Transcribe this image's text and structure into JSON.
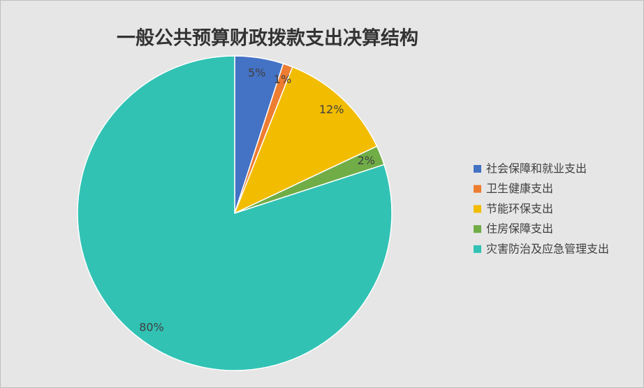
{
  "chart_data": {
    "type": "pie",
    "title": "一般公共预算财政拨款支出决算结构",
    "categories": [
      "社会保障和就业支出",
      "卫生健康支出",
      "节能环保支出",
      "住房保障支出",
      "灾害防治及应急管理支出"
    ],
    "values": [
      5,
      1,
      12,
      2,
      80
    ],
    "value_labels": [
      "5%",
      "1%",
      "12%",
      "2%",
      "80%"
    ],
    "colors": [
      "#4472c4",
      "#ed7d31",
      "#f2bc00",
      "#70ad47",
      "#31c2b4"
    ],
    "legend": "right"
  }
}
